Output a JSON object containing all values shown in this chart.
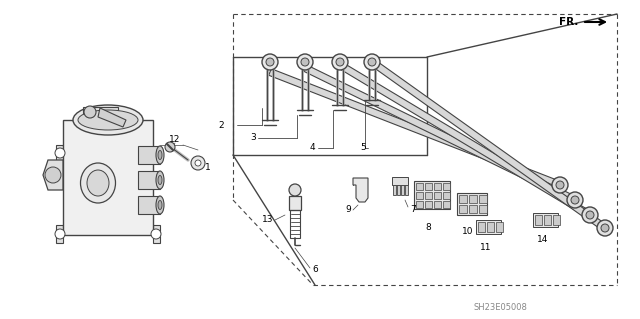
{
  "part_number": "SH23E05008",
  "background_color": "#ffffff",
  "line_color": "#444444",
  "fig_width": 6.4,
  "fig_height": 3.19,
  "dpi": 100
}
